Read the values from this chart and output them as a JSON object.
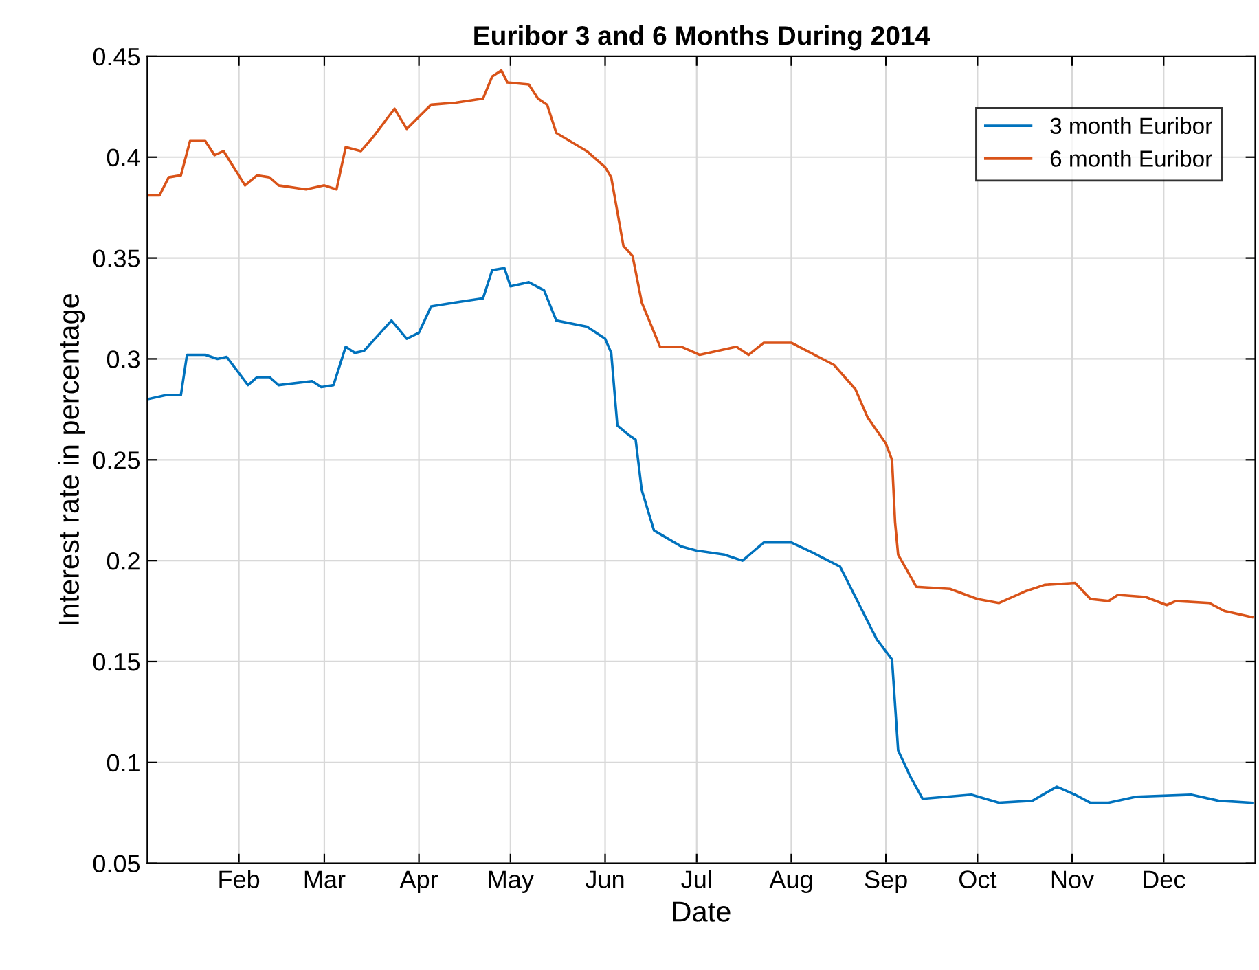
{
  "chart_data": {
    "type": "line",
    "title": "Euribor 3 and 6 Months During 2014",
    "xlabel": "Date",
    "ylabel": "Interest rate in percentage",
    "xlim": [
      "2014-01-02",
      "2014-12-31"
    ],
    "xticks": [
      {
        "value": "2014-02-01",
        "label": "Feb"
      },
      {
        "value": "2014-03-01",
        "label": "Mar"
      },
      {
        "value": "2014-04-01",
        "label": "Apr"
      },
      {
        "value": "2014-05-01",
        "label": "May"
      },
      {
        "value": "2014-06-01",
        "label": "Jun"
      },
      {
        "value": "2014-07-01",
        "label": "Jul"
      },
      {
        "value": "2014-08-01",
        "label": "Aug"
      },
      {
        "value": "2014-09-01",
        "label": "Sep"
      },
      {
        "value": "2014-10-01",
        "label": "Oct"
      },
      {
        "value": "2014-11-01",
        "label": "Nov"
      },
      {
        "value": "2014-12-01",
        "label": "Dec"
      }
    ],
    "ylim": [
      0.05,
      0.45
    ],
    "yticks": [
      0.05,
      0.1,
      0.15,
      0.2,
      0.25,
      0.3,
      0.35,
      0.4,
      0.45
    ],
    "grid": true,
    "legend": "top right",
    "line_style": "solid",
    "marker": "none",
    "series": [
      {
        "name": "3 month Euribor",
        "color": "#0072bd",
        "x": [
          "2014-01-02",
          "2014-01-08",
          "2014-01-13",
          "2014-01-15",
          "2014-01-21",
          "2014-01-25",
          "2014-01-28",
          "2014-02-04",
          "2014-02-07",
          "2014-02-11",
          "2014-02-14",
          "2014-02-25",
          "2014-02-28",
          "2014-03-04",
          "2014-03-08",
          "2014-03-11",
          "2014-03-14",
          "2014-03-23",
          "2014-03-28",
          "2014-04-01",
          "2014-04-05",
          "2014-04-13",
          "2014-04-22",
          "2014-04-25",
          "2014-04-29",
          "2014-05-01",
          "2014-05-07",
          "2014-05-12",
          "2014-05-16",
          "2014-05-26",
          "2014-06-01",
          "2014-06-03",
          "2014-06-05",
          "2014-06-09",
          "2014-06-11",
          "2014-06-13",
          "2014-06-17",
          "2014-06-26",
          "2014-07-01",
          "2014-07-10",
          "2014-07-16",
          "2014-07-23",
          "2014-08-01",
          "2014-08-08",
          "2014-08-17",
          "2014-08-23",
          "2014-08-29",
          "2014-09-03",
          "2014-09-05",
          "2014-09-09",
          "2014-09-13",
          "2014-09-29",
          "2014-10-08",
          "2014-10-19",
          "2014-10-27",
          "2014-11-02",
          "2014-11-07",
          "2014-11-13",
          "2014-11-22",
          "2014-12-10",
          "2014-12-19",
          "2014-12-30"
        ],
        "values": [
          0.28,
          0.282,
          0.282,
          0.302,
          0.302,
          0.3,
          0.301,
          0.287,
          0.291,
          0.291,
          0.287,
          0.289,
          0.286,
          0.287,
          0.306,
          0.303,
          0.304,
          0.319,
          0.31,
          0.313,
          0.326,
          0.328,
          0.33,
          0.344,
          0.345,
          0.336,
          0.338,
          0.334,
          0.319,
          0.316,
          0.31,
          0.303,
          0.267,
          0.262,
          0.26,
          0.235,
          0.215,
          0.207,
          0.205,
          0.203,
          0.2,
          0.209,
          0.209,
          0.204,
          0.197,
          0.179,
          0.161,
          0.151,
          0.106,
          0.093,
          0.082,
          0.084,
          0.08,
          0.081,
          0.088,
          0.084,
          0.08,
          0.08,
          0.083,
          0.084,
          0.081,
          0.08
        ]
      },
      {
        "name": "6 month Euribor",
        "color": "#d95319",
        "x": [
          "2014-01-02",
          "2014-01-06",
          "2014-01-09",
          "2014-01-13",
          "2014-01-16",
          "2014-01-21",
          "2014-01-24",
          "2014-01-27",
          "2014-02-03",
          "2014-02-07",
          "2014-02-11",
          "2014-02-14",
          "2014-02-23",
          "2014-03-01",
          "2014-03-05",
          "2014-03-08",
          "2014-03-13",
          "2014-03-17",
          "2014-03-24",
          "2014-03-28",
          "2014-04-05",
          "2014-04-13",
          "2014-04-22",
          "2014-04-25",
          "2014-04-28",
          "2014-04-30",
          "2014-05-07",
          "2014-05-10",
          "2014-05-13",
          "2014-05-16",
          "2014-05-26",
          "2014-06-01",
          "2014-06-03",
          "2014-06-07",
          "2014-06-10",
          "2014-06-13",
          "2014-06-19",
          "2014-06-26",
          "2014-07-02",
          "2014-07-14",
          "2014-07-18",
          "2014-07-23",
          "2014-08-01",
          "2014-08-15",
          "2014-08-22",
          "2014-08-26",
          "2014-09-01",
          "2014-09-03",
          "2014-09-04",
          "2014-09-05",
          "2014-09-11",
          "2014-09-22",
          "2014-10-01",
          "2014-10-08",
          "2014-10-17",
          "2014-10-23",
          "2014-11-02",
          "2014-11-07",
          "2014-11-13",
          "2014-11-16",
          "2014-11-25",
          "2014-12-02",
          "2014-12-05",
          "2014-12-16",
          "2014-12-21",
          "2014-12-30"
        ],
        "values": [
          0.381,
          0.381,
          0.39,
          0.391,
          0.408,
          0.408,
          0.401,
          0.403,
          0.386,
          0.391,
          0.39,
          0.386,
          0.384,
          0.386,
          0.384,
          0.405,
          0.403,
          0.41,
          0.424,
          0.414,
          0.426,
          0.427,
          0.429,
          0.44,
          0.443,
          0.437,
          0.436,
          0.429,
          0.426,
          0.412,
          0.403,
          0.395,
          0.39,
          0.356,
          0.351,
          0.328,
          0.306,
          0.306,
          0.302,
          0.306,
          0.302,
          0.308,
          0.308,
          0.297,
          0.285,
          0.271,
          0.258,
          0.25,
          0.219,
          0.203,
          0.187,
          0.186,
          0.181,
          0.179,
          0.185,
          0.188,
          0.189,
          0.181,
          0.18,
          0.183,
          0.182,
          0.178,
          0.18,
          0.179,
          0.175,
          0.172
        ]
      }
    ]
  }
}
